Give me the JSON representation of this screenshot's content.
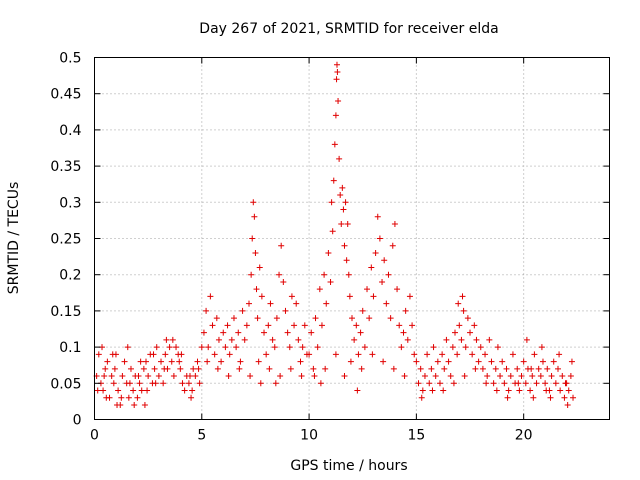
{
  "chart_data": {
    "type": "scatter",
    "title": "Day 267 of 2021, SRMTID for receiver elda",
    "xlabel": "GPS time / hours",
    "ylabel": "SRMTID / TECUs",
    "xlim": [
      0,
      24
    ],
    "ylim": [
      0,
      0.5
    ],
    "x_ticks": [
      0,
      5,
      10,
      15,
      20
    ],
    "x_tick_labels": [
      "0",
      "5",
      "10",
      "15",
      "20"
    ],
    "y_ticks": [
      0,
      0.05,
      0.1,
      0.15,
      0.2,
      0.25,
      0.3,
      0.35,
      0.4,
      0.45,
      0.5
    ],
    "y_tick_labels": [
      "0",
      "0.05",
      "0.1",
      "0.15",
      "0.2",
      "0.25",
      "0.3",
      "0.35",
      "0.4",
      "0.45",
      "0.5"
    ],
    "grid": true,
    "marker": "+",
    "marker_color": "#e00000",
    "series": [
      {
        "name": "SRMTID",
        "points": [
          [
            0.1,
            0.06
          ],
          [
            0.2,
            0.09
          ],
          [
            0.3,
            0.05
          ],
          [
            0.4,
            0.04
          ],
          [
            0.5,
            0.07
          ],
          [
            0.6,
            0.08
          ],
          [
            0.7,
            0.03
          ],
          [
            0.8,
            0.06
          ],
          [
            0.9,
            0.05
          ],
          [
            1.0,
            0.09
          ],
          [
            1.1,
            0.04
          ],
          [
            1.2,
            0.02
          ],
          [
            1.3,
            0.06
          ],
          [
            1.4,
            0.08
          ],
          [
            1.5,
            0.05
          ],
          [
            1.6,
            0.03
          ],
          [
            1.7,
            0.07
          ],
          [
            1.8,
            0.04
          ],
          [
            1.9,
            0.06
          ],
          [
            2.0,
            0.03
          ],
          [
            2.1,
            0.05
          ],
          [
            2.2,
            0.04
          ],
          [
            2.3,
            0.07
          ],
          [
            2.4,
            0.08
          ],
          [
            2.5,
            0.06
          ],
          [
            2.6,
            0.09
          ],
          [
            2.7,
            0.05
          ],
          [
            2.8,
            0.07
          ],
          [
            2.9,
            0.1
          ],
          [
            3.0,
            0.06
          ],
          [
            3.1,
            0.08
          ],
          [
            3.2,
            0.05
          ],
          [
            3.3,
            0.09
          ],
          [
            3.4,
            0.07
          ],
          [
            3.5,
            0.1
          ],
          [
            3.6,
            0.08
          ],
          [
            3.7,
            0.06
          ],
          [
            3.8,
            0.1
          ],
          [
            3.9,
            0.09
          ],
          [
            4.0,
            0.07
          ],
          [
            4.1,
            0.05
          ],
          [
            4.2,
            0.04
          ],
          [
            4.3,
            0.06
          ],
          [
            4.4,
            0.05
          ],
          [
            4.5,
            0.03
          ],
          [
            4.6,
            0.07
          ],
          [
            4.7,
            0.06
          ],
          [
            4.8,
            0.08
          ],
          [
            4.9,
            0.05
          ],
          [
            5.0,
            0.1
          ],
          [
            0.15,
            0.04
          ],
          [
            0.45,
            0.06
          ],
          [
            0.85,
            0.09
          ],
          [
            1.25,
            0.03
          ],
          [
            1.65,
            0.05
          ],
          [
            2.05,
            0.06
          ],
          [
            2.45,
            0.04
          ],
          [
            2.85,
            0.05
          ],
          [
            3.25,
            0.07
          ],
          [
            3.65,
            0.11
          ],
          [
            4.05,
            0.09
          ],
          [
            4.45,
            0.06
          ],
          [
            4.85,
            0.07
          ],
          [
            0.35,
            0.1
          ],
          [
            0.95,
            0.07
          ],
          [
            1.55,
            0.1
          ],
          [
            2.15,
            0.08
          ],
          [
            2.75,
            0.09
          ],
          [
            3.35,
            0.11
          ],
          [
            3.95,
            0.08
          ],
          [
            4.55,
            0.04
          ],
          [
            1.05,
            0.02
          ],
          [
            1.85,
            0.02
          ],
          [
            0.55,
            0.03
          ],
          [
            2.35,
            0.02
          ],
          [
            5.1,
            0.12
          ],
          [
            5.2,
            0.15
          ],
          [
            5.3,
            0.1
          ],
          [
            5.4,
            0.17
          ],
          [
            5.5,
            0.13
          ],
          [
            5.6,
            0.09
          ],
          [
            5.7,
            0.14
          ],
          [
            5.8,
            0.11
          ],
          [
            5.9,
            0.08
          ],
          [
            6.0,
            0.12
          ],
          [
            6.1,
            0.1
          ],
          [
            6.2,
            0.13
          ],
          [
            6.3,
            0.09
          ],
          [
            6.4,
            0.11
          ],
          [
            6.5,
            0.14
          ],
          [
            6.6,
            0.1
          ],
          [
            6.7,
            0.12
          ],
          [
            6.8,
            0.08
          ],
          [
            6.9,
            0.15
          ],
          [
            7.0,
            0.11
          ],
          [
            7.1,
            0.13
          ],
          [
            7.2,
            0.16
          ],
          [
            7.3,
            0.2
          ],
          [
            7.35,
            0.25
          ],
          [
            7.4,
            0.3
          ],
          [
            7.45,
            0.28
          ],
          [
            7.5,
            0.23
          ],
          [
            7.55,
            0.18
          ],
          [
            7.6,
            0.14
          ],
          [
            7.7,
            0.21
          ],
          [
            7.8,
            0.17
          ],
          [
            7.9,
            0.12
          ],
          [
            8.0,
            0.09
          ],
          [
            8.1,
            0.13
          ],
          [
            8.2,
            0.16
          ],
          [
            8.3,
            0.11
          ],
          [
            8.4,
            0.1
          ],
          [
            8.5,
            0.14
          ],
          [
            8.6,
            0.2
          ],
          [
            8.7,
            0.24
          ],
          [
            8.8,
            0.19
          ],
          [
            8.9,
            0.15
          ],
          [
            9.0,
            0.12
          ],
          [
            9.1,
            0.1
          ],
          [
            9.2,
            0.17
          ],
          [
            9.3,
            0.13
          ],
          [
            9.4,
            0.16
          ],
          [
            9.5,
            0.11
          ],
          [
            9.6,
            0.08
          ],
          [
            9.7,
            0.1
          ],
          [
            9.8,
            0.13
          ],
          [
            9.9,
            0.09
          ],
          [
            5.25,
            0.08
          ],
          [
            5.75,
            0.07
          ],
          [
            6.25,
            0.06
          ],
          [
            6.75,
            0.07
          ],
          [
            7.25,
            0.06
          ],
          [
            7.65,
            0.08
          ],
          [
            8.15,
            0.07
          ],
          [
            8.65,
            0.06
          ],
          [
            9.15,
            0.07
          ],
          [
            9.65,
            0.06
          ],
          [
            7.75,
            0.05
          ],
          [
            8.45,
            0.05
          ],
          [
            10.0,
            0.09
          ],
          [
            10.1,
            0.12
          ],
          [
            10.2,
            0.07
          ],
          [
            10.3,
            0.14
          ],
          [
            10.4,
            0.1
          ],
          [
            10.5,
            0.18
          ],
          [
            10.6,
            0.13
          ],
          [
            10.7,
            0.2
          ],
          [
            10.8,
            0.16
          ],
          [
            10.9,
            0.23
          ],
          [
            11.0,
            0.19
          ],
          [
            11.05,
            0.3
          ],
          [
            11.1,
            0.26
          ],
          [
            11.15,
            0.33
          ],
          [
            11.2,
            0.38
          ],
          [
            11.25,
            0.42
          ],
          [
            11.28,
            0.47
          ],
          [
            11.3,
            0.49
          ],
          [
            11.32,
            0.48
          ],
          [
            11.35,
            0.44
          ],
          [
            11.4,
            0.36
          ],
          [
            11.45,
            0.31
          ],
          [
            11.5,
            0.27
          ],
          [
            11.55,
            0.32
          ],
          [
            11.6,
            0.29
          ],
          [
            11.65,
            0.24
          ],
          [
            11.7,
            0.3
          ],
          [
            11.75,
            0.22
          ],
          [
            11.8,
            0.27
          ],
          [
            11.85,
            0.2
          ],
          [
            11.9,
            0.17
          ],
          [
            12.0,
            0.14
          ],
          [
            12.1,
            0.11
          ],
          [
            12.2,
            0.13
          ],
          [
            12.3,
            0.09
          ],
          [
            12.4,
            0.12
          ],
          [
            12.5,
            0.15
          ],
          [
            12.6,
            0.1
          ],
          [
            12.7,
            0.18
          ],
          [
            12.8,
            0.14
          ],
          [
            12.9,
            0.21
          ],
          [
            13.0,
            0.17
          ],
          [
            13.1,
            0.23
          ],
          [
            13.2,
            0.28
          ],
          [
            13.3,
            0.25
          ],
          [
            13.4,
            0.19
          ],
          [
            13.5,
            0.22
          ],
          [
            13.6,
            0.16
          ],
          [
            13.7,
            0.2
          ],
          [
            13.8,
            0.14
          ],
          [
            13.9,
            0.24
          ],
          [
            14.0,
            0.27
          ],
          [
            14.1,
            0.18
          ],
          [
            14.2,
            0.13
          ],
          [
            14.3,
            0.1
          ],
          [
            14.4,
            0.12
          ],
          [
            14.5,
            0.15
          ],
          [
            14.6,
            0.11
          ],
          [
            14.7,
            0.17
          ],
          [
            14.8,
            0.13
          ],
          [
            14.9,
            0.09
          ],
          [
            10.25,
            0.06
          ],
          [
            10.75,
            0.07
          ],
          [
            11.25,
            0.09
          ],
          [
            11.95,
            0.08
          ],
          [
            12.45,
            0.07
          ],
          [
            12.95,
            0.09
          ],
          [
            13.45,
            0.08
          ],
          [
            13.95,
            0.07
          ],
          [
            14.45,
            0.06
          ],
          [
            12.25,
            0.04
          ],
          [
            11.65,
            0.06
          ],
          [
            10.55,
            0.05
          ],
          [
            15.0,
            0.08
          ],
          [
            15.1,
            0.05
          ],
          [
            15.2,
            0.07
          ],
          [
            15.3,
            0.04
          ],
          [
            15.4,
            0.06
          ],
          [
            15.5,
            0.09
          ],
          [
            15.6,
            0.05
          ],
          [
            15.7,
            0.07
          ],
          [
            15.8,
            0.1
          ],
          [
            15.9,
            0.06
          ],
          [
            16.0,
            0.08
          ],
          [
            16.1,
            0.05
          ],
          [
            16.2,
            0.09
          ],
          [
            16.3,
            0.07
          ],
          [
            16.4,
            0.11
          ],
          [
            16.5,
            0.08
          ],
          [
            16.6,
            0.06
          ],
          [
            16.7,
            0.1
          ],
          [
            16.8,
            0.12
          ],
          [
            16.9,
            0.09
          ],
          [
            17.0,
            0.13
          ],
          [
            17.1,
            0.11
          ],
          [
            17.2,
            0.15
          ],
          [
            17.3,
            0.1
          ],
          [
            17.4,
            0.14
          ],
          [
            17.5,
            0.12
          ],
          [
            17.6,
            0.09
          ],
          [
            17.7,
            0.13
          ],
          [
            17.8,
            0.11
          ],
          [
            17.9,
            0.08
          ],
          [
            18.0,
            0.1
          ],
          [
            18.1,
            0.07
          ],
          [
            18.2,
            0.09
          ],
          [
            18.3,
            0.06
          ],
          [
            18.4,
            0.11
          ],
          [
            18.5,
            0.08
          ],
          [
            18.6,
            0.05
          ],
          [
            18.7,
            0.07
          ],
          [
            18.8,
            0.1
          ],
          [
            18.9,
            0.06
          ],
          [
            19.0,
            0.08
          ],
          [
            19.1,
            0.05
          ],
          [
            19.2,
            0.07
          ],
          [
            19.3,
            0.04
          ],
          [
            19.4,
            0.06
          ],
          [
            19.5,
            0.09
          ],
          [
            19.6,
            0.05
          ],
          [
            19.7,
            0.07
          ],
          [
            19.8,
            0.04
          ],
          [
            19.9,
            0.06
          ],
          [
            15.25,
            0.03
          ],
          [
            15.75,
            0.04
          ],
          [
            16.25,
            0.04
          ],
          [
            16.75,
            0.05
          ],
          [
            17.25,
            0.06
          ],
          [
            17.75,
            0.07
          ],
          [
            18.25,
            0.05
          ],
          [
            18.75,
            0.04
          ],
          [
            19.25,
            0.03
          ],
          [
            19.75,
            0.05
          ],
          [
            16.95,
            0.16
          ],
          [
            17.15,
            0.17
          ],
          [
            20.0,
            0.08
          ],
          [
            20.1,
            0.05
          ],
          [
            20.2,
            0.07
          ],
          [
            20.3,
            0.04
          ],
          [
            20.4,
            0.06
          ],
          [
            20.5,
            0.09
          ],
          [
            20.6,
            0.05
          ],
          [
            20.7,
            0.07
          ],
          [
            20.8,
            0.06
          ],
          [
            20.9,
            0.08
          ],
          [
            21.0,
            0.05
          ],
          [
            21.1,
            0.07
          ],
          [
            21.2,
            0.04
          ],
          [
            21.3,
            0.06
          ],
          [
            21.4,
            0.08
          ],
          [
            21.5,
            0.05
          ],
          [
            21.6,
            0.07
          ],
          [
            21.7,
            0.04
          ],
          [
            21.8,
            0.06
          ],
          [
            21.9,
            0.03
          ],
          [
            22.0,
            0.05
          ],
          [
            22.1,
            0.04
          ],
          [
            22.2,
            0.06
          ],
          [
            22.3,
            0.03
          ],
          [
            20.15,
            0.11
          ],
          [
            20.45,
            0.03
          ],
          [
            20.85,
            0.1
          ],
          [
            21.25,
            0.03
          ],
          [
            21.65,
            0.09
          ],
          [
            21.95,
            0.05
          ],
          [
            22.05,
            0.02
          ],
          [
            22.25,
            0.08
          ],
          [
            20.35,
            0.07
          ],
          [
            21.05,
            0.04
          ]
        ]
      }
    ]
  }
}
